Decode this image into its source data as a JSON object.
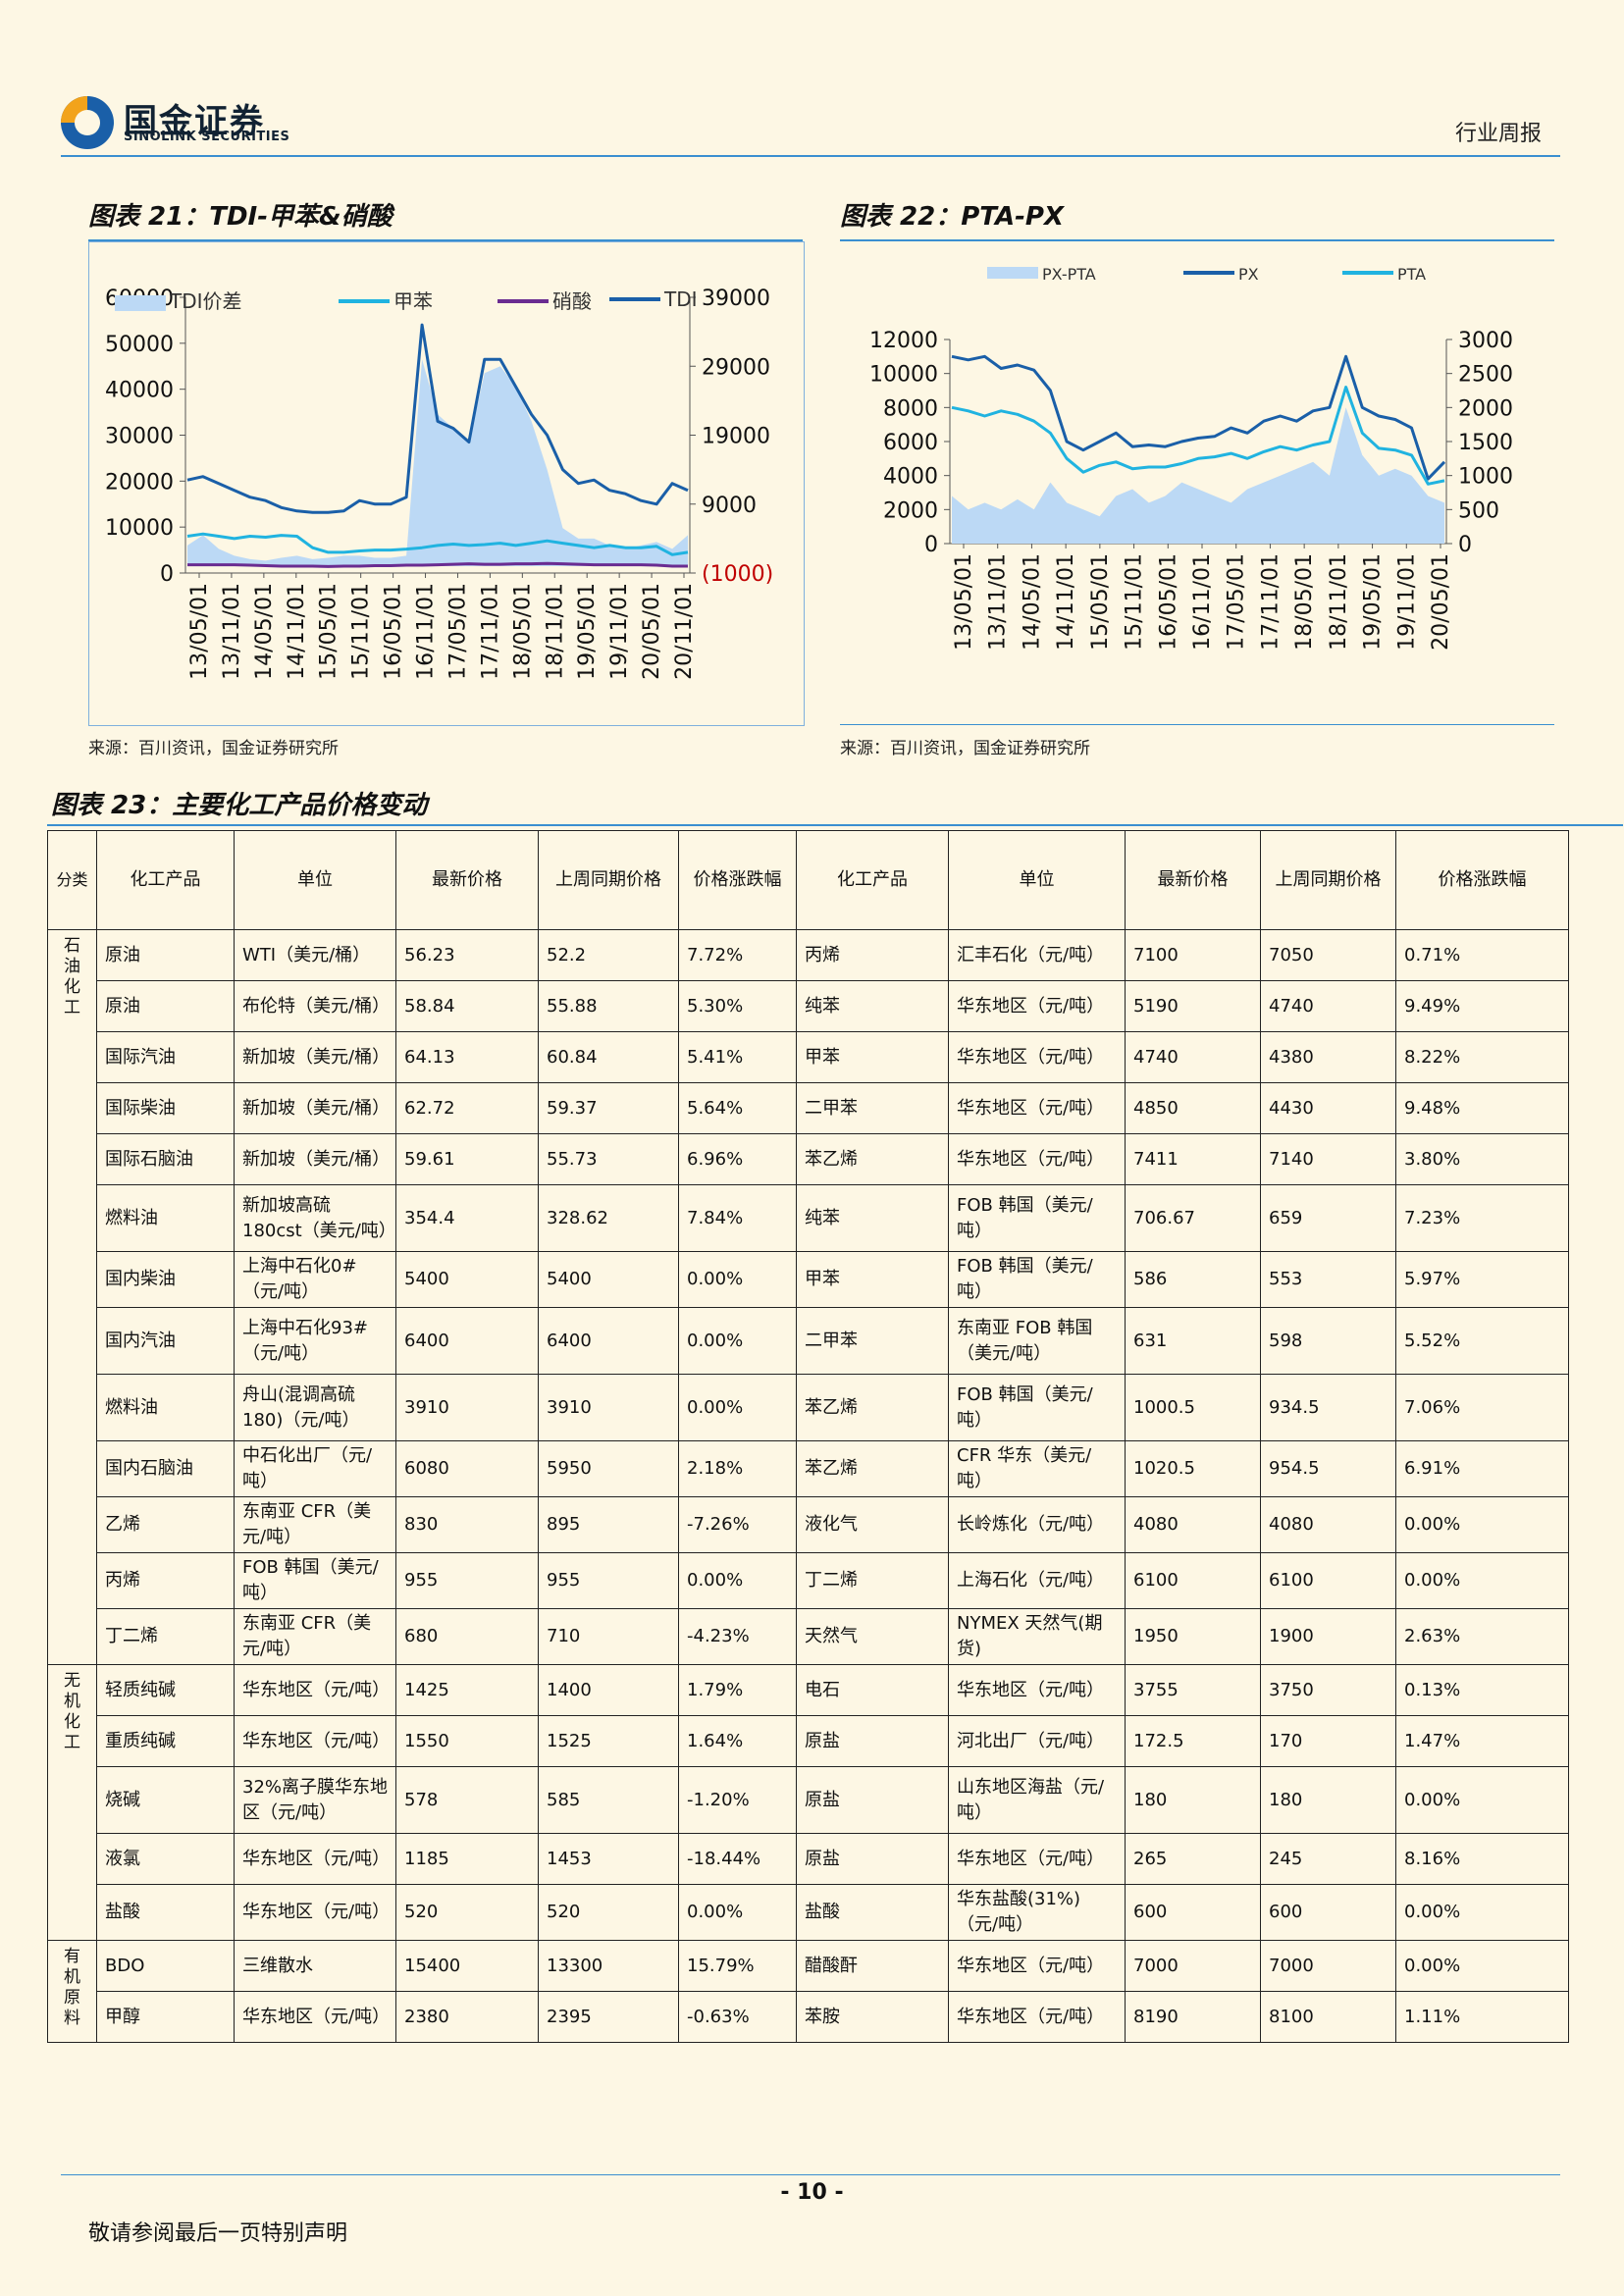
{
  "header": {
    "logo_cn": "国金证券",
    "logo_en": "SINOLINK SECURITIES",
    "report_type": "行业周报"
  },
  "fig21": {
    "title": "图表 21：TDI-甲苯&硝酸",
    "source": "来源：百川资讯，国金证券研究所",
    "chart_data": {
      "type": "area",
      "legend": [
        "TDI价差",
        "甲苯",
        "硝酸",
        "TDI"
      ],
      "legend_position": "top",
      "x_ticks": [
        "13/05/01",
        "13/11/01",
        "14/05/01",
        "14/11/01",
        "15/05/01",
        "15/11/01",
        "16/05/01",
        "16/11/01",
        "17/05/01",
        "17/11/01",
        "18/05/01",
        "18/11/01",
        "19/05/01",
        "19/11/01",
        "20/05/01",
        "20/11/01"
      ],
      "y_left_ticks": [
        "60000",
        "50000",
        "40000",
        "30000",
        "20000",
        "10000",
        "0"
      ],
      "y_left_range": [
        0,
        60000
      ],
      "y_right_ticks": [
        "39000",
        "29000",
        "19000",
        "9000",
        "(1000)"
      ],
      "y_right_range": [
        -1000,
        39000
      ],
      "series": [
        {
          "name": "TDI价差",
          "axis": "right",
          "color": "#bcd9f5",
          "values": [
            3000,
            4500,
            2500,
            1500,
            1000,
            800,
            1200,
            1500,
            1000,
            1200,
            1500,
            1500,
            1200,
            1200,
            1500,
            30000,
            22000,
            20000,
            18000,
            28000,
            29000,
            26000,
            21000,
            14000,
            5500,
            4000,
            4000,
            3000,
            2500,
            3000,
            3500,
            2500,
            4500
          ]
        },
        {
          "name": "甲苯",
          "axis": "left",
          "color": "#20b3e0",
          "values": [
            8000,
            8500,
            8000,
            7500,
            8000,
            7800,
            8200,
            8000,
            5500,
            4500,
            4500,
            4800,
            5000,
            5000,
            5200,
            5500,
            6000,
            6300,
            6000,
            6200,
            6500,
            6000,
            6500,
            7000,
            6500,
            6000,
            5500,
            6000,
            5500,
            5500,
            5800,
            4000,
            4500
          ]
        },
        {
          "name": "硝酸",
          "axis": "left",
          "color": "#6a2c91",
          "values": [
            1800,
            1800,
            1800,
            1800,
            1700,
            1600,
            1500,
            1500,
            1500,
            1400,
            1500,
            1500,
            1600,
            1600,
            1700,
            1700,
            1800,
            1900,
            2000,
            1900,
            1900,
            2000,
            2000,
            2100,
            2000,
            1900,
            1800,
            1800,
            1800,
            1800,
            1700,
            1500,
            1500
          ]
        },
        {
          "name": "TDI",
          "axis": "right",
          "color": "#1a5fa8",
          "values": [
            12500,
            13000,
            12000,
            11000,
            10000,
            9500,
            8500,
            8000,
            7800,
            7800,
            8000,
            9500,
            9000,
            9000,
            10000,
            35000,
            21000,
            20000,
            18000,
            30000,
            30000,
            26000,
            22000,
            19000,
            14000,
            12000,
            12500,
            11000,
            10500,
            9500,
            9000,
            12000,
            11000
          ]
        }
      ]
    }
  },
  "fig22": {
    "title": "图表 22：PTA-PX",
    "source": "来源：百川资讯，国金证券研究所",
    "chart_data": {
      "type": "area",
      "legend": [
        "PX-PTA",
        "PX",
        "PTA"
      ],
      "legend_position": "top",
      "x_ticks": [
        "13/05/01",
        "13/11/01",
        "14/05/01",
        "14/11/01",
        "15/05/01",
        "15/11/01",
        "16/05/01",
        "16/11/01",
        "17/05/01",
        "17/11/01",
        "18/05/01",
        "18/11/01",
        "19/05/01",
        "19/11/01",
        "20/05/01"
      ],
      "y_left_ticks": [
        "12000",
        "10000",
        "8000",
        "6000",
        "4000",
        "2000",
        "0"
      ],
      "y_left_range": [
        0,
        12000
      ],
      "y_right_ticks": [
        "3000",
        "2500",
        "2000",
        "1500",
        "1000",
        "500",
        "0"
      ],
      "y_right_range": [
        0,
        3000
      ],
      "series": [
        {
          "name": "PX-PTA",
          "axis": "right",
          "color": "#bcd9f5",
          "values": [
            700,
            500,
            600,
            500,
            650,
            500,
            900,
            600,
            500,
            400,
            700,
            800,
            600,
            700,
            900,
            800,
            700,
            600,
            800,
            900,
            1000,
            1100,
            1200,
            1000,
            2000,
            1300,
            1000,
            1100,
            1000,
            700,
            600
          ]
        },
        {
          "name": "PX",
          "axis": "left",
          "color": "#1a5fa8",
          "values": [
            11000,
            10800,
            11000,
            10300,
            10500,
            10200,
            9000,
            6000,
            5500,
            6000,
            6500,
            5700,
            5800,
            5700,
            6000,
            6200,
            6300,
            6800,
            6500,
            7200,
            7500,
            7200,
            7800,
            8000,
            11000,
            8000,
            7500,
            7300,
            6800,
            3800,
            4800
          ]
        },
        {
          "name": "PTA",
          "axis": "left",
          "color": "#20b3e0",
          "values": [
            8000,
            7800,
            7500,
            7800,
            7600,
            7200,
            6500,
            5000,
            4200,
            4600,
            4800,
            4400,
            4500,
            4500,
            4700,
            5000,
            5100,
            5300,
            5000,
            5400,
            5700,
            5500,
            5800,
            6000,
            9200,
            6500,
            5600,
            5500,
            5200,
            3500,
            3700
          ]
        }
      ]
    }
  },
  "table": {
    "title": "图表 23：主要化工产品价格变动",
    "headers": [
      "分类",
      "化工产品",
      "单位",
      "最新价格",
      "上周同期价格",
      "价格涨跌幅",
      "化工产品",
      "单位",
      "最新价格",
      "上周同期价格",
      "价格涨跌幅"
    ],
    "categories": [
      {
        "name": "石油化工",
        "rows": 13
      },
      {
        "name": "无机化工",
        "rows": 5
      },
      {
        "name": "有机原料",
        "rows": 2
      }
    ],
    "rows": [
      [
        "原油",
        "WTI（美元/桶）",
        "56.23",
        "52.2",
        "7.72%",
        "丙烯",
        "汇丰石化（元/吨）",
        "7100",
        "7050",
        "0.71%"
      ],
      [
        "原油",
        "布伦特（美元/桶）",
        "58.84",
        "55.88",
        "5.30%",
        "纯苯",
        "华东地区（元/吨）",
        "5190",
        "4740",
        "9.49%"
      ],
      [
        "国际汽油",
        "新加坡（美元/桶）",
        "64.13",
        "60.84",
        "5.41%",
        "甲苯",
        "华东地区（元/吨）",
        "4740",
        "4380",
        "8.22%"
      ],
      [
        "国际柴油",
        "新加坡（美元/桶）",
        "62.72",
        "59.37",
        "5.64%",
        "二甲苯",
        "华东地区（元/吨）",
        "4850",
        "4430",
        "9.48%"
      ],
      [
        "国际石脑油",
        "新加坡（美元/桶）",
        "59.61",
        "55.73",
        "6.96%",
        "苯乙烯",
        "华东地区（元/吨）",
        "7411",
        "7140",
        "3.80%"
      ],
      [
        "燃料油",
        "新加坡高硫180cst（美元/吨）",
        "354.4",
        "328.62",
        "7.84%",
        "纯苯",
        "FOB 韩国（美元/吨）",
        "706.67",
        "659",
        "7.23%"
      ],
      [
        "国内柴油",
        "上海中石化0#（元/吨）",
        "5400",
        "5400",
        "0.00%",
        "甲苯",
        "FOB 韩国（美元/吨）",
        "586",
        "553",
        "5.97%"
      ],
      [
        "国内汽油",
        "上海中石化93#（元/吨）",
        "6400",
        "6400",
        "0.00%",
        "二甲苯",
        "东南亚 FOB 韩国（美元/吨）",
        "631",
        "598",
        "5.52%"
      ],
      [
        "燃料油",
        "舟山(混调高硫180)（元/吨）",
        "3910",
        "3910",
        "0.00%",
        "苯乙烯",
        "FOB 韩国（美元/吨）",
        "1000.5",
        "934.5",
        "7.06%"
      ],
      [
        "国内石脑油",
        "中石化出厂（元/吨）",
        "6080",
        "5950",
        "2.18%",
        "苯乙烯",
        "CFR 华东（美元/吨）",
        "1020.5",
        "954.5",
        "6.91%"
      ],
      [
        "乙烯",
        "东南亚 CFR（美元/吨）",
        "830",
        "895",
        "-7.26%",
        "液化气",
        "长岭炼化（元/吨）",
        "4080",
        "4080",
        "0.00%"
      ],
      [
        "丙烯",
        "FOB 韩国（美元/吨）",
        "955",
        "955",
        "0.00%",
        "丁二烯",
        "上海石化（元/吨）",
        "6100",
        "6100",
        "0.00%"
      ],
      [
        "丁二烯",
        "东南亚 CFR（美元/吨）",
        "680",
        "710",
        "-4.23%",
        "天然气",
        "NYMEX 天然气(期货)",
        "1950",
        "1900",
        "2.63%"
      ],
      [
        "轻质纯碱",
        "华东地区（元/吨）",
        "1425",
        "1400",
        "1.79%",
        "电石",
        "华东地区（元/吨）",
        "3755",
        "3750",
        "0.13%"
      ],
      [
        "重质纯碱",
        "华东地区（元/吨）",
        "1550",
        "1525",
        "1.64%",
        "原盐",
        "河北出厂（元/吨）",
        "172.5",
        "170",
        "1.47%"
      ],
      [
        "烧碱",
        "32%离子膜华东地区（元/吨）",
        "578",
        "585",
        "-1.20%",
        "原盐",
        "山东地区海盐（元/吨）",
        "180",
        "180",
        "0.00%"
      ],
      [
        "液氯",
        "华东地区（元/吨）",
        "1185",
        "1453",
        "-18.44%",
        "原盐",
        "华东地区（元/吨）",
        "265",
        "245",
        "8.16%"
      ],
      [
        "盐酸",
        "华东地区（元/吨）",
        "520",
        "520",
        "0.00%",
        "盐酸",
        "华东盐酸(31%)（元/吨）",
        "600",
        "600",
        "0.00%"
      ],
      [
        "BDO",
        "三维散水",
        "15400",
        "13300",
        "15.79%",
        "醋酸酐",
        "华东地区（元/吨）",
        "7000",
        "7000",
        "0.00%"
      ],
      [
        "甲醇",
        "华东地区（元/吨）",
        "2380",
        "2395",
        "-0.63%",
        "苯胺",
        "华东地区（元/吨）",
        "8190",
        "8100",
        "1.11%"
      ]
    ]
  },
  "footer": {
    "page_number": "- 10 -",
    "disclaimer": "敬请参阅最后一页特别声明"
  }
}
